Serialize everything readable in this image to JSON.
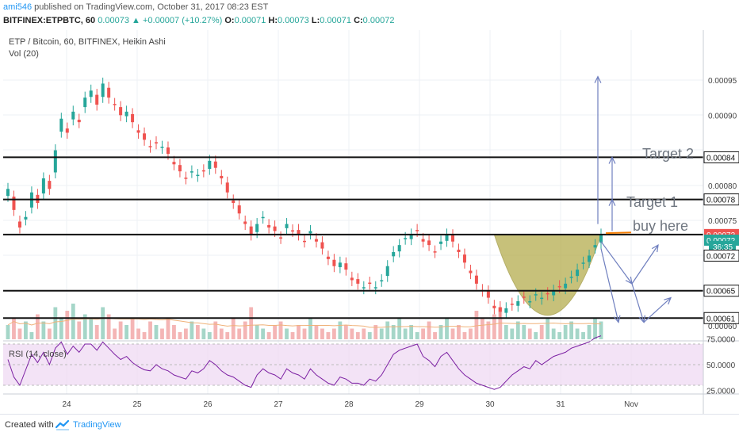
{
  "header": {
    "author": "ami546",
    "published": "published on TradingView.com, October 31, 2017 08:23 EST",
    "symbol_line": "BITFINEX:ETPBTC, 60",
    "price": "0.00073",
    "change": "+0.00007 (+10.27%)",
    "o_label": "O:",
    "o_value": "0.00071",
    "h_label": "H:",
    "h_value": "0.00073",
    "l_label": "L:",
    "l_value": "0.00071",
    "c_label": "C:",
    "c_value": "0.00072"
  },
  "legend": {
    "title": "ETP / Bitcoin, 60, BITFINEX, Heikin Ashi",
    "vol": "Vol (20)",
    "rsi": "RSI (14, close)"
  },
  "footer": {
    "created": "Created with",
    "brand": "TradingView"
  },
  "colors": {
    "up": "#26a69a",
    "down": "#ef5350",
    "vol_up": "#a5d6c8",
    "vol_down": "#f4b5b5",
    "cup_fill": "#b5ad4e",
    "arrow": "#6f7fbf",
    "orange": "#f57c00",
    "rsi_band": "#efd9f3",
    "rsi_line": "#7b1fa2"
  },
  "chart_data": {
    "type": "candlestick",
    "x_ticks": [
      "24",
      "25",
      "26",
      "27",
      "28",
      "29",
      "30",
      "31",
      "Nov"
    ],
    "price_ticks": [
      "0.00095",
      "0.00090",
      "0.00080",
      "0.00075",
      "0.00060"
    ],
    "price_labels": [
      {
        "value": "0.00084",
        "y": 0.00084,
        "style": "line"
      },
      {
        "value": "0.00078",
        "y": 0.00078,
        "style": "line"
      },
      {
        "value": "0.00073",
        "y": 0.00073,
        "style": "red"
      },
      {
        "value": "0.00072",
        "y": 0.000722,
        "style": "green"
      },
      {
        "value": "36:35",
        "y": 0.000713,
        "style": "green"
      },
      {
        "value": "0.00072",
        "y": 0.0007,
        "style": "line"
      },
      {
        "value": "0.00065",
        "y": 0.00065,
        "style": "line"
      },
      {
        "value": "0.00061",
        "y": 0.000611,
        "style": "line"
      }
    ],
    "horizontal_levels": [
      0.00084,
      0.00078,
      0.00073,
      0.00065,
      0.000611
    ],
    "annotations": [
      "Target 2",
      "Target 1",
      "buy here"
    ],
    "rsi_ticks": [
      "75.0000",
      "50.0000",
      "25.0000"
    ],
    "rsi_range": [
      18,
      80
    ],
    "rsi_band": [
      30,
      70
    ],
    "series": [
      {
        "name": "close",
        "values": [
          0.000795,
          0.000765,
          0.00074,
          0.000755,
          0.00079,
          0.000775,
          0.00081,
          0.000795,
          0.00085,
          0.000895,
          0.000875,
          0.000905,
          0.00089,
          0.000925,
          0.000935,
          0.000915,
          0.000945,
          0.000925,
          0.000915,
          0.0009,
          0.000905,
          0.00089,
          0.000875,
          0.000865,
          0.000855,
          0.00086,
          0.000855,
          0.000845,
          0.00083,
          0.00082,
          0.00081,
          0.00082,
          0.000815,
          0.00082,
          0.000835,
          0.000825,
          0.00081,
          0.00079,
          0.000775,
          0.00076,
          0.000745,
          0.00073,
          0.000745,
          0.000755,
          0.00074,
          0.000735,
          0.000725,
          0.000745,
          0.000735,
          0.00073,
          0.00072,
          0.000735,
          0.00072,
          0.00071,
          0.000695,
          0.000685,
          0.00069,
          0.00068,
          0.000665,
          0.00066,
          0.000655,
          0.00066,
          0.000655,
          0.000665,
          0.000685,
          0.000705,
          0.000715,
          0.000725,
          0.00073,
          0.000735,
          0.00072,
          0.000715,
          0.000705,
          0.00072,
          0.00073,
          0.00072,
          0.000705,
          0.00069,
          0.000675,
          0.00066,
          0.00065,
          0.00064,
          0.000625,
          0.00062,
          0.000625,
          0.00063,
          0.000635,
          0.00064,
          0.000635,
          0.000645,
          0.00064,
          0.000645,
          0.00065,
          0.000655,
          0.00066,
          0.00067,
          0.00068,
          0.00069,
          0.0007,
          0.000715,
          0.00073
        ]
      },
      {
        "name": "volume",
        "values": [
          0.4,
          0.6,
          0.3,
          0.5,
          0.2,
          0.7,
          0.5,
          0.3,
          0.9,
          0.6,
          0.8,
          1.0,
          0.5,
          0.7,
          0.6,
          0.4,
          0.9,
          0.7,
          0.3,
          0.5,
          0.4,
          0.6,
          0.3,
          0.2,
          0.5,
          0.4,
          0.3,
          0.6,
          0.4,
          0.2,
          0.3,
          0.5,
          0.4,
          0.3,
          0.2,
          0.5,
          0.3,
          0.2,
          0.6,
          0.3,
          0.5,
          0.9,
          0.4,
          0.3,
          0.2,
          0.4,
          0.5,
          0.3,
          0.2,
          0.4,
          0.3,
          0.6,
          0.4,
          0.3,
          0.2,
          0.3,
          0.5,
          0.4,
          0.3,
          0.2,
          0.3,
          0.2,
          0.4,
          0.3,
          0.5,
          0.4,
          0.6,
          0.3,
          0.4,
          0.2,
          0.3,
          0.5,
          0.2,
          0.4,
          0.6,
          0.3,
          0.4,
          0.2,
          0.3,
          0.8,
          0.6,
          0.5,
          0.7,
          0.9,
          0.4,
          0.3,
          0.5,
          0.4,
          0.3,
          0.2,
          0.4,
          0.6,
          0.3,
          0.2,
          0.4,
          0.5,
          0.3,
          0.2,
          0.4,
          0.6,
          0.5
        ]
      },
      {
        "name": "rsi",
        "values": [
          55,
          38,
          30,
          45,
          60,
          52,
          62,
          50,
          66,
          72,
          60,
          68,
          62,
          70,
          70,
          64,
          72,
          66,
          60,
          55,
          58,
          52,
          48,
          45,
          44,
          50,
          46,
          44,
          40,
          38,
          36,
          44,
          42,
          46,
          54,
          50,
          44,
          40,
          38,
          34,
          30,
          28,
          40,
          46,
          42,
          40,
          36,
          46,
          42,
          40,
          36,
          46,
          40,
          36,
          32,
          30,
          38,
          36,
          32,
          32,
          30,
          36,
          34,
          40,
          50,
          60,
          64,
          66,
          68,
          70,
          58,
          54,
          48,
          58,
          62,
          54,
          46,
          40,
          36,
          32,
          30,
          28,
          26,
          28,
          34,
          40,
          44,
          48,
          46,
          54,
          50,
          54,
          58,
          60,
          62,
          66,
          68,
          70,
          72,
          76,
          78
        ]
      }
    ]
  }
}
